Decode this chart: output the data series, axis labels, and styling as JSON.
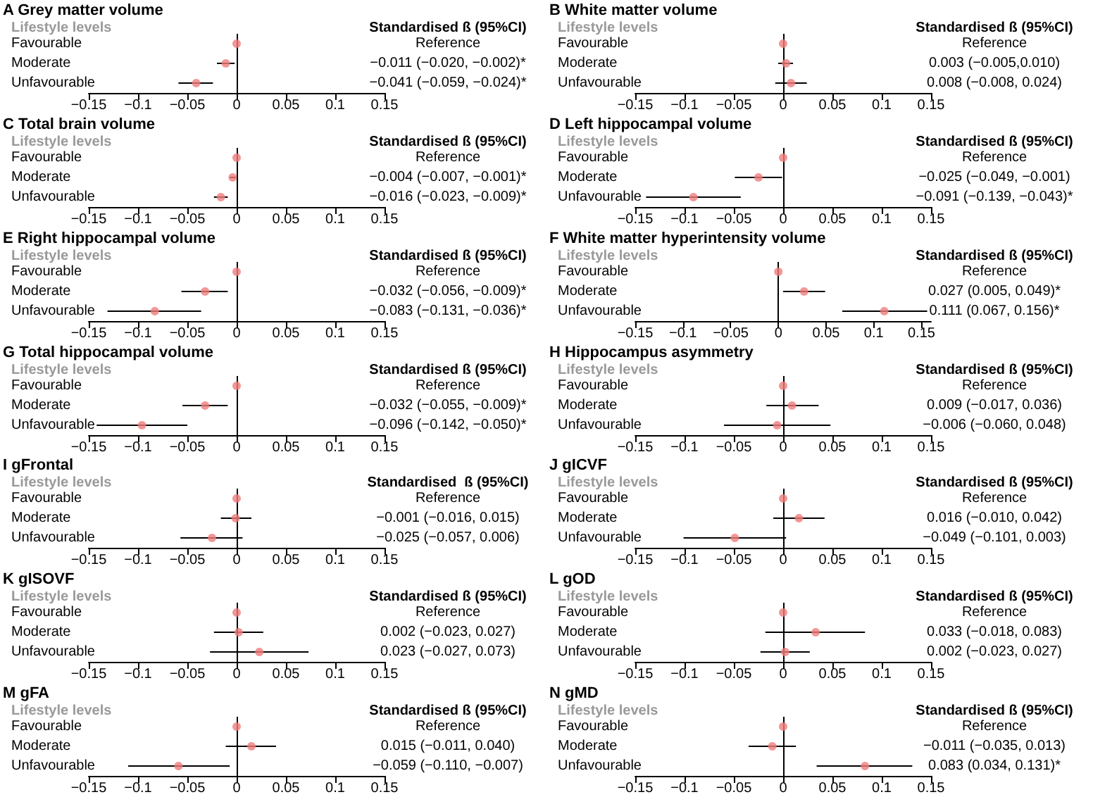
{
  "chart_data": [
    {
      "type": "scatter",
      "orientation": "horizontal",
      "title": "A Grey matter volume",
      "ylabel": "Lifestyle levels",
      "annotations": [
        "Standardised ß (95%CI)",
        "Reference",
        "−0.011 (−0.020, −0.002)*",
        "−0.041 (−0.059, −0.024)*"
      ],
      "categories": [
        "Favourable",
        "Moderate",
        "Unfavourable"
      ],
      "values": [
        0,
        -0.011,
        -0.041
      ],
      "errors": [
        null,
        [
          -0.02,
          -0.002
        ],
        [
          -0.059,
          -0.024
        ]
      ],
      "color": "#f07c7c",
      "marker": "circle",
      "xlim": [
        -0.15,
        0.15
      ],
      "xticks": [
        {
          "value": -0.15,
          "label": "−0.15"
        },
        {
          "value": -0.1,
          "label": "−0.1"
        },
        {
          "value": -0.05,
          "label": "−0.05"
        },
        0,
        0.05,
        0.1,
        0.15
      ],
      "ref_lines": [
        {
          "axis": "x",
          "value": 0,
          "color": "#000000"
        }
      ]
    },
    {
      "type": "scatter",
      "orientation": "horizontal",
      "title": "B White matter volume",
      "ylabel": "Lifestyle levels",
      "annotations": [
        "Standardised ß (95%CI)",
        "Reference",
        "0.003 (−0.005,0.010)",
        "0.008 (−0.008, 0.024)"
      ],
      "categories": [
        "Favourable",
        "Moderate",
        "Unfavourable"
      ],
      "values": [
        0,
        0.003,
        0.008
      ],
      "errors": [
        null,
        [
          -0.005,
          0.01
        ],
        [
          -0.008,
          0.024
        ]
      ],
      "color": "#f07c7c",
      "marker": "circle",
      "xlim": [
        -0.15,
        0.15
      ],
      "xticks": [
        {
          "value": -0.15,
          "label": "−0.15"
        },
        {
          "value": -0.1,
          "label": "−0.1"
        },
        {
          "value": -0.05,
          "label": "−0.05"
        },
        0,
        0.05,
        0.1,
        0.15
      ],
      "ref_lines": [
        {
          "axis": "x",
          "value": 0,
          "color": "#000000"
        }
      ]
    },
    {
      "type": "scatter",
      "orientation": "horizontal",
      "title": "C Total brain volume",
      "ylabel": "Lifestyle levels",
      "annotations": [
        "Standardised ß (95%CI)",
        "Reference",
        "−0.004 (−0.007, −0.001)*",
        "−0.016 (−0.023, −0.009)*"
      ],
      "categories": [
        "Favourable",
        "Moderate",
        "Unfavourable"
      ],
      "values": [
        0,
        -0.004,
        -0.016
      ],
      "errors": [
        null,
        [
          -0.007,
          -0.001
        ],
        [
          -0.023,
          -0.009
        ]
      ],
      "color": "#f07c7c",
      "marker": "circle",
      "xlim": [
        -0.15,
        0.15
      ],
      "xticks": [
        {
          "value": -0.15,
          "label": "−0.15"
        },
        {
          "value": -0.1,
          "label": "−0.1"
        },
        {
          "value": -0.05,
          "label": "−0.05"
        },
        0,
        0.05,
        0.1,
        0.15
      ],
      "ref_lines": [
        {
          "axis": "x",
          "value": 0,
          "color": "#000000"
        }
      ]
    },
    {
      "type": "scatter",
      "orientation": "horizontal",
      "title": "D Left hippocampal volume",
      "ylabel": "Lifestyle levels",
      "annotations": [
        "Standardised ß (95%CI)",
        "Reference",
        "−0.025 (−0.049, −0.001)",
        "−0.091 (−0.139, −0.043)*"
      ],
      "categories": [
        "Favourable",
        "Moderate",
        "Unfavourable"
      ],
      "values": [
        0,
        -0.025,
        -0.091
      ],
      "errors": [
        null,
        [
          -0.049,
          -0.001
        ],
        [
          -0.139,
          -0.043
        ]
      ],
      "color": "#f07c7c",
      "marker": "circle",
      "xlim": [
        -0.15,
        0.15
      ],
      "xticks": [
        {
          "value": -0.15,
          "label": "−0.15"
        },
        {
          "value": -0.1,
          "label": "−0.1"
        },
        {
          "value": -0.05,
          "label": "−0.05"
        },
        0,
        0.05,
        0.1,
        0.15
      ],
      "ref_lines": [
        {
          "axis": "x",
          "value": 0,
          "color": "#000000"
        }
      ]
    },
    {
      "type": "scatter",
      "orientation": "horizontal",
      "title": "E Right hippocampal volume",
      "ylabel": "Lifestyle levels",
      "annotations": [
        "Standardised ß (95%CI)",
        "Reference",
        "−0.032 (−0.056, −0.009)*",
        "−0.083 (−0.131, −0.036)*"
      ],
      "categories": [
        "Favourable",
        "Moderate",
        "Unfavourable"
      ],
      "values": [
        0,
        -0.032,
        -0.083
      ],
      "errors": [
        null,
        [
          -0.056,
          -0.009
        ],
        [
          -0.131,
          -0.036
        ]
      ],
      "color": "#f07c7c",
      "marker": "circle",
      "xlim": [
        -0.15,
        0.15
      ],
      "xticks": [
        {
          "value": -0.15,
          "label": "−0.15"
        },
        {
          "value": -0.1,
          "label": "−0.1"
        },
        {
          "value": -0.05,
          "label": "−0.05"
        },
        0,
        0.05,
        0.1,
        0.15
      ],
      "ref_lines": [
        {
          "axis": "x",
          "value": 0,
          "color": "#000000"
        }
      ]
    },
    {
      "type": "scatter",
      "orientation": "horizontal",
      "title": "F White matter hyperintensity volume",
      "ylabel": "Lifestyle levels",
      "annotations": [
        "Standardised ß (95%CI)",
        "Reference",
        "0.027 (0.005, 0.049)*",
        "0.111 (0.067, 0.156)*"
      ],
      "categories": [
        "Favourable",
        "Moderate",
        "Unfavourable"
      ],
      "values": [
        0,
        0.027,
        0.111
      ],
      "errors": [
        null,
        [
          0.005,
          0.049
        ],
        [
          0.067,
          0.156
        ]
      ],
      "color": "#f07c7c",
      "marker": "circle",
      "xlim": [
        -0.15,
        0.16
      ],
      "xticks": [
        {
          "value": -0.15,
          "label": "−0.15"
        },
        {
          "value": -0.1,
          "label": "−0.1"
        },
        {
          "value": -0.05,
          "label": "−0.05"
        },
        0,
        0.05,
        0.1,
        0.15
      ],
      "ref_lines": [
        {
          "axis": "x",
          "value": 0,
          "color": "#000000"
        }
      ]
    },
    {
      "type": "scatter",
      "orientation": "horizontal",
      "title": "G Total hippocampal volume",
      "ylabel": "Lifestyle levels",
      "annotations": [
        "Standardised ß (95%CI)",
        "Reference",
        "−0.032 (−0.055, −0.009)*",
        "−0.096 (−0.142, −0.050)*"
      ],
      "categories": [
        "Favourable",
        "Moderate",
        "Unfavourable"
      ],
      "values": [
        0,
        -0.032,
        -0.096
      ],
      "errors": [
        null,
        [
          -0.055,
          -0.009
        ],
        [
          -0.142,
          -0.05
        ]
      ],
      "color": "#f07c7c",
      "marker": "circle",
      "xlim": [
        -0.15,
        0.15
      ],
      "xticks": [
        {
          "value": -0.15,
          "label": "−0.15"
        },
        {
          "value": -0.1,
          "label": "−0.1"
        },
        {
          "value": -0.05,
          "label": "−0.05"
        },
        0,
        0.05,
        0.1,
        0.15
      ],
      "ref_lines": [
        {
          "axis": "x",
          "value": 0,
          "color": "#000000"
        }
      ]
    },
    {
      "type": "scatter",
      "orientation": "horizontal",
      "title": "H Hippocampus asymmetry",
      "ylabel": "Lifestyle levels",
      "annotations": [
        "Standardised ß (95%CI)",
        "Reference",
        "0.009 (−0.017, 0.036)",
        "−0.006 (−0.060, 0.048)"
      ],
      "categories": [
        "Favourable",
        "Moderate",
        "Unfavourable"
      ],
      "values": [
        0,
        0.009,
        -0.006
      ],
      "errors": [
        null,
        [
          -0.017,
          0.036
        ],
        [
          -0.06,
          0.048
        ]
      ],
      "color": "#f07c7c",
      "marker": "circle",
      "xlim": [
        -0.15,
        0.15
      ],
      "xticks": [
        {
          "value": -0.15,
          "label": "−0.15"
        },
        {
          "value": -0.1,
          "label": "−0.1"
        },
        {
          "value": -0.05,
          "label": "−0.05"
        },
        0,
        0.05,
        0.1,
        0.15
      ],
      "ref_lines": [
        {
          "axis": "x",
          "value": 0,
          "color": "#000000"
        }
      ]
    },
    {
      "type": "scatter",
      "orientation": "horizontal",
      "title": "I gFrontal",
      "ylabel": "Lifestyle levels",
      "annotations": [
        "Standardised  ß (95%CI)",
        "Reference",
        "−0.001 (−0.016, 0.015)",
        "−0.025 (−0.057, 0.006)"
      ],
      "categories": [
        "Favourable",
        "Moderate",
        "Unfavourable"
      ],
      "values": [
        0,
        -0.001,
        -0.025
      ],
      "errors": [
        null,
        [
          -0.016,
          0.015
        ],
        [
          -0.057,
          0.006
        ]
      ],
      "color": "#f07c7c",
      "marker": "circle",
      "xlim": [
        -0.15,
        0.15
      ],
      "xticks": [
        {
          "value": -0.15,
          "label": "−0.15"
        },
        {
          "value": -0.1,
          "label": "−0.1"
        },
        {
          "value": -0.05,
          "label": "−0.05"
        },
        0,
        0.05,
        0.1,
        0.15
      ],
      "ref_lines": [
        {
          "axis": "x",
          "value": 0,
          "color": "#000000"
        }
      ]
    },
    {
      "type": "scatter",
      "orientation": "horizontal",
      "title": "J gICVF",
      "ylabel": "Lifestyle levels",
      "annotations": [
        "Standardised ß (95%CI)",
        "Reference",
        "0.016 (−0.010, 0.042)",
        "−0.049 (−0.101, 0.003)"
      ],
      "categories": [
        "Favourable",
        "Moderate",
        "Unfavourable"
      ],
      "values": [
        0,
        0.016,
        -0.049
      ],
      "errors": [
        null,
        [
          -0.01,
          0.042
        ],
        [
          -0.101,
          0.003
        ]
      ],
      "color": "#f07c7c",
      "marker": "circle",
      "xlim": [
        -0.15,
        0.15
      ],
      "xticks": [
        {
          "value": -0.15,
          "label": "−0.15"
        },
        {
          "value": -0.1,
          "label": "−0.1"
        },
        {
          "value": -0.05,
          "label": "−0.05"
        },
        0,
        0.05,
        0.1,
        0.15
      ],
      "ref_lines": [
        {
          "axis": "x",
          "value": 0,
          "color": "#000000"
        }
      ]
    },
    {
      "type": "scatter",
      "orientation": "horizontal",
      "title": "K gISOVF",
      "ylabel": "Lifestyle levels",
      "annotations": [
        "Standardised ß (95%CI)",
        "Reference",
        "0.002 (−0.023, 0.027)",
        "0.023 (−0.027, 0.073)"
      ],
      "categories": [
        "Favourable",
        "Moderate",
        "Unfavourable"
      ],
      "values": [
        0,
        0.002,
        0.023
      ],
      "errors": [
        null,
        [
          -0.023,
          0.027
        ],
        [
          -0.027,
          0.073
        ]
      ],
      "color": "#f07c7c",
      "marker": "circle",
      "xlim": [
        -0.15,
        0.15
      ],
      "xticks": [
        {
          "value": -0.15,
          "label": "−0.15"
        },
        {
          "value": -0.1,
          "label": "−0.1"
        },
        {
          "value": -0.05,
          "label": "−0.05"
        },
        0,
        0.05,
        0.1,
        0.15
      ],
      "ref_lines": [
        {
          "axis": "x",
          "value": 0,
          "color": "#000000"
        }
      ]
    },
    {
      "type": "scatter",
      "orientation": "horizontal",
      "title": "L gOD",
      "ylabel": "Lifestyle levels",
      "annotations": [
        "Standardised ß (95%CI)",
        "Reference",
        "0.033 (−0.018, 0.083)",
        "0.002 (−0.023, 0.027)"
      ],
      "categories": [
        "Favourable",
        "Moderate",
        "Unfavourable"
      ],
      "values": [
        0,
        0.033,
        0.002
      ],
      "errors": [
        null,
        [
          -0.018,
          0.083
        ],
        [
          -0.023,
          0.027
        ]
      ],
      "color": "#f07c7c",
      "marker": "circle",
      "xlim": [
        -0.15,
        0.15
      ],
      "xticks": [
        {
          "value": -0.15,
          "label": "−0.15"
        },
        {
          "value": -0.1,
          "label": "−0.1"
        },
        {
          "value": -0.05,
          "label": "−0.05"
        },
        0,
        0.05,
        0.1,
        0.15
      ],
      "ref_lines": [
        {
          "axis": "x",
          "value": 0,
          "color": "#000000"
        }
      ]
    },
    {
      "type": "scatter",
      "orientation": "horizontal",
      "title": "M gFA",
      "ylabel": "Lifestyle levels",
      "annotations": [
        "Standardised ß (95%CI)",
        "Reference",
        "0.015 (−0.011, 0.040)",
        "−0.059 (−0.110, −0.007)"
      ],
      "categories": [
        "Favourable",
        "Moderate",
        "Unfavourable"
      ],
      "values": [
        0,
        0.015,
        -0.059
      ],
      "errors": [
        null,
        [
          -0.011,
          0.04
        ],
        [
          -0.11,
          -0.007
        ]
      ],
      "color": "#f07c7c",
      "marker": "circle",
      "xlim": [
        -0.15,
        0.15
      ],
      "xticks": [
        {
          "value": -0.15,
          "label": "−0.15"
        },
        {
          "value": -0.1,
          "label": "−0.1"
        },
        {
          "value": -0.05,
          "label": "−0.05"
        },
        0,
        0.05,
        0.1,
        0.15
      ],
      "ref_lines": [
        {
          "axis": "x",
          "value": 0,
          "color": "#000000"
        }
      ]
    },
    {
      "type": "scatter",
      "orientation": "horizontal",
      "title": "N gMD",
      "ylabel": "Lifestyle levels",
      "annotations": [
        "Standardised ß (95%CI)",
        "Reference",
        "−0.011 (−0.035, 0.013)",
        "0.083 (0.034, 0.131)*"
      ],
      "categories": [
        "Favourable",
        "Moderate",
        "Unfavourable"
      ],
      "values": [
        0,
        -0.011,
        0.083
      ],
      "errors": [
        null,
        [
          -0.035,
          0.013
        ],
        [
          0.034,
          0.131
        ]
      ],
      "color": "#f07c7c",
      "marker": "circle",
      "xlim": [
        -0.15,
        0.15
      ],
      "xticks": [
        {
          "value": -0.15,
          "label": "−0.15"
        },
        {
          "value": -0.1,
          "label": "−0.1"
        },
        {
          "value": -0.05,
          "label": "−0.05"
        },
        0,
        0.05,
        0.1,
        0.15
      ],
      "ref_lines": [
        {
          "axis": "x",
          "value": 0,
          "color": "#000000"
        }
      ]
    }
  ]
}
